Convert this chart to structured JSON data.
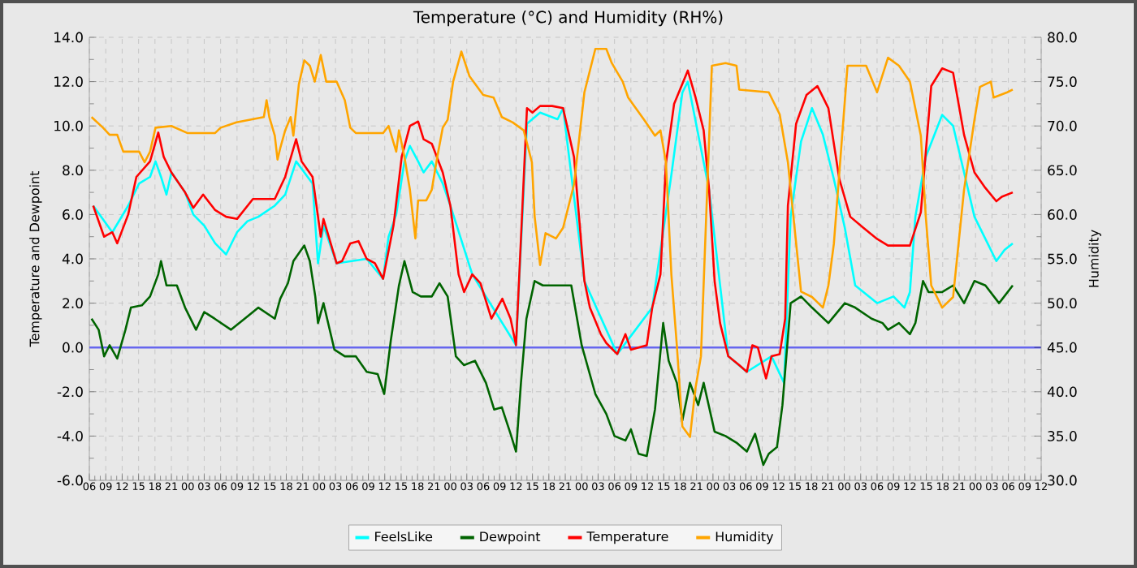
{
  "chart_data": {
    "type": "line",
    "title": "Temperature (°C) and Humidity (RH%)",
    "ylabel": "Temperature and Dewpoint",
    "y2label": "Humidity",
    "xlim": [
      6,
      180
    ],
    "xticks": [
      {
        "value": 6,
        "label": "06"
      },
      {
        "value": 9,
        "label": "09"
      },
      {
        "value": 12,
        "label": "12"
      },
      {
        "value": 15,
        "label": "15"
      },
      {
        "value": 18,
        "label": "18"
      },
      {
        "value": 21,
        "label": "21"
      },
      {
        "value": 24,
        "label": "00"
      },
      {
        "value": 27,
        "label": "03"
      },
      {
        "value": 30,
        "label": "06"
      },
      {
        "value": 33,
        "label": "09"
      },
      {
        "value": 36,
        "label": "12"
      },
      {
        "value": 39,
        "label": "15"
      },
      {
        "value": 42,
        "label": "18"
      },
      {
        "value": 45,
        "label": "21"
      },
      {
        "value": 48,
        "label": "00"
      },
      {
        "value": 51,
        "label": "03"
      },
      {
        "value": 54,
        "label": "06"
      },
      {
        "value": 57,
        "label": "09"
      },
      {
        "value": 60,
        "label": "12"
      },
      {
        "value": 63,
        "label": "15"
      },
      {
        "value": 66,
        "label": "18"
      },
      {
        "value": 69,
        "label": "21"
      },
      {
        "value": 72,
        "label": "00"
      },
      {
        "value": 75,
        "label": "03"
      },
      {
        "value": 78,
        "label": "06"
      },
      {
        "value": 81,
        "label": "09"
      },
      {
        "value": 84,
        "label": "12"
      },
      {
        "value": 87,
        "label": "15"
      },
      {
        "value": 90,
        "label": "18"
      },
      {
        "value": 93,
        "label": "21"
      },
      {
        "value": 96,
        "label": "00"
      },
      {
        "value": 99,
        "label": "03"
      },
      {
        "value": 102,
        "label": "06"
      },
      {
        "value": 105,
        "label": "09"
      },
      {
        "value": 108,
        "label": "12"
      },
      {
        "value": 111,
        "label": "15"
      },
      {
        "value": 114,
        "label": "18"
      },
      {
        "value": 117,
        "label": "21"
      },
      {
        "value": 120,
        "label": "00"
      },
      {
        "value": 123,
        "label": "03"
      },
      {
        "value": 126,
        "label": "06"
      },
      {
        "value": 129,
        "label": "09"
      },
      {
        "value": 132,
        "label": "12"
      },
      {
        "value": 135,
        "label": "15"
      },
      {
        "value": 138,
        "label": "18"
      },
      {
        "value": 141,
        "label": "21"
      },
      {
        "value": 144,
        "label": "00"
      },
      {
        "value": 147,
        "label": "03"
      },
      {
        "value": 150,
        "label": "06"
      },
      {
        "value": 153,
        "label": "09"
      },
      {
        "value": 156,
        "label": "12"
      },
      {
        "value": 159,
        "label": "15"
      },
      {
        "value": 162,
        "label": "18"
      },
      {
        "value": 165,
        "label": "21"
      },
      {
        "value": 168,
        "label": "00"
      },
      {
        "value": 171,
        "label": "03"
      },
      {
        "value": 174,
        "label": "06"
      },
      {
        "value": 177,
        "label": "09"
      },
      {
        "value": 180,
        "label": "12"
      }
    ],
    "ylim": [
      -6,
      14
    ],
    "yticks": [
      {
        "value": -6,
        "label": "-6.0"
      },
      {
        "value": -4,
        "label": "-4.0"
      },
      {
        "value": -2,
        "label": "-2.0"
      },
      {
        "value": 0,
        "label": "0.0"
      },
      {
        "value": 2,
        "label": "2.0"
      },
      {
        "value": 4,
        "label": "4.0"
      },
      {
        "value": 6,
        "label": "6.0"
      },
      {
        "value": 8,
        "label": "8.0"
      },
      {
        "value": 10,
        "label": "10.0"
      },
      {
        "value": 12,
        "label": "12.0"
      },
      {
        "value": 14,
        "label": "14.0"
      }
    ],
    "y2lim": [
      30,
      80
    ],
    "y2ticks": [
      {
        "value": 30,
        "label": "30.0"
      },
      {
        "value": 35,
        "label": "35.0"
      },
      {
        "value": 40,
        "label": "40.0"
      },
      {
        "value": 45,
        "label": "45.0"
      },
      {
        "value": 50,
        "label": "50.0"
      },
      {
        "value": 55,
        "label": "55.0"
      },
      {
        "value": 60,
        "label": "60.0"
      },
      {
        "value": 65,
        "label": "65.0"
      },
      {
        "value": 70,
        "label": "70.0"
      },
      {
        "value": 75,
        "label": "75.0"
      },
      {
        "value": 80,
        "label": "80.0"
      }
    ],
    "grid": true,
    "legend": "bottom",
    "marker": "none",
    "ref_lines": [
      {
        "axis": "y",
        "value": 0,
        "color": "#6666ee"
      }
    ],
    "series": [
      {
        "name": "FeelsLike",
        "color": "#00ffff",
        "x": [
          6.7,
          10.2,
          13.1,
          15.1,
          17.1,
          18.1,
          19.1,
          20.1,
          21,
          23.5,
          25,
          27,
          29,
          31,
          33,
          34.9,
          36.9,
          39.9,
          41.8,
          43.8,
          45.3,
          46.8,
          47.8,
          48.8,
          51.2,
          56.7,
          59.7,
          60.7,
          62.1,
          63.6,
          64.6,
          66.1,
          67.1,
          68.6,
          70.6,
          72,
          76,
          84,
          86,
          88.4,
          91.6,
          92.6,
          96.5,
          102.5,
          108.9,
          112.4,
          114.4,
          115.4,
          119.3,
          122.8,
          126.2,
          130.7,
          133,
          134.2,
          136.1,
          138.1,
          140.1,
          142.1,
          144.1,
          146,
          150,
          153,
          155,
          156,
          157,
          158.9,
          161.9,
          163.9,
          165.9,
          167.8,
          169.8,
          171.8,
          173.3,
          174.8
        ],
        "values": [
          6.4,
          5.2,
          6.4,
          7.4,
          7.7,
          8.4,
          7.7,
          6.9,
          7.9,
          7.0,
          6.0,
          5.5,
          4.7,
          4.2,
          5.2,
          5.7,
          5.9,
          6.4,
          6.9,
          8.4,
          7.9,
          7.4,
          3.8,
          5.5,
          3.8,
          4.0,
          3.1,
          5.0,
          6.0,
          8.4,
          9.1,
          8.4,
          7.9,
          8.4,
          7.4,
          6.4,
          3.3,
          0.1,
          10.1,
          10.6,
          10.3,
          10.8,
          3.0,
          -0.3,
          1.8,
          7.8,
          11.5,
          12.0,
          7.1,
          -0.4,
          -1.1,
          -0.4,
          -1.6,
          5.9,
          9.3,
          10.8,
          9.6,
          7.6,
          5.4,
          2.8,
          2.0,
          2.3,
          1.8,
          2.5,
          5.9,
          8.6,
          10.5,
          10.0,
          7.9,
          5.9,
          4.9,
          3.9,
          4.4,
          4.7
        ]
      },
      {
        "name": "Dewpoint",
        "color": "#006400",
        "x": [
          6.4,
          7.7,
          8.7,
          9.7,
          11.1,
          12.6,
          13.6,
          15.6,
          17.1,
          18.6,
          19.1,
          20.1,
          22,
          23.5,
          25.5,
          27,
          28.9,
          31.9,
          34.9,
          36.9,
          39.9,
          40.9,
          42.3,
          43.3,
          45.3,
          46.3,
          47.3,
          47.8,
          48.8,
          50.8,
          52.7,
          54.7,
          56.7,
          58.7,
          59.9,
          61.1,
          62.6,
          63.6,
          65.1,
          66.6,
          68.6,
          70,
          71.5,
          73,
          74.5,
          76.5,
          78.5,
          80,
          81.4,
          83,
          84,
          84.9,
          85.9,
          87.4,
          88.9,
          90.6,
          94.1,
          96,
          98.5,
          100.5,
          102,
          104,
          105,
          106.4,
          107.9,
          109.4,
          110.9,
          111.9,
          113.4,
          114.4,
          115.8,
          117.3,
          118.3,
          120.3,
          122.3,
          124.3,
          126.2,
          127.7,
          129.2,
          130.2,
          131.7,
          132.7,
          134.2,
          136.1,
          138.1,
          141.1,
          144.1,
          146,
          149,
          151,
          152,
          154,
          156,
          157,
          158.4,
          159.4,
          161.9,
          163.9,
          165.9,
          167.8,
          169.8,
          172.3,
          174.8
        ],
        "values": [
          1.3,
          0.8,
          -0.4,
          0.1,
          -0.5,
          0.8,
          1.8,
          1.9,
          2.3,
          3.3,
          3.9,
          2.8,
          2.8,
          1.8,
          0.8,
          1.6,
          1.3,
          0.8,
          1.4,
          1.8,
          1.3,
          2.2,
          2.9,
          3.9,
          4.6,
          3.9,
          2.3,
          1.1,
          2.0,
          -0.1,
          -0.4,
          -0.4,
          -1.1,
          -1.2,
          -2.1,
          0.3,
          2.8,
          3.9,
          2.5,
          2.3,
          2.3,
          2.9,
          2.3,
          -0.4,
          -0.8,
          -0.6,
          -1.6,
          -2.8,
          -2.7,
          -3.9,
          -4.7,
          -1.6,
          1.3,
          3.0,
          2.8,
          2.8,
          2.8,
          0.1,
          -2.1,
          -3.0,
          -4.0,
          -4.2,
          -3.7,
          -4.8,
          -4.9,
          -2.8,
          1.1,
          -0.6,
          -1.6,
          -3.3,
          -1.6,
          -2.6,
          -1.6,
          -3.8,
          -4.0,
          -4.3,
          -4.7,
          -3.9,
          -5.3,
          -4.8,
          -4.5,
          -2.6,
          2.0,
          2.3,
          1.8,
          1.1,
          2.0,
          1.8,
          1.3,
          1.1,
          0.8,
          1.1,
          0.6,
          1.1,
          3.0,
          2.5,
          2.5,
          2.8,
          2.0,
          3.0,
          2.8,
          2.0,
          2.8
        ]
      },
      {
        "name": "Temperature",
        "color": "#ff0000",
        "x": [
          6.7,
          8.7,
          10.2,
          11.1,
          13.1,
          14.6,
          17.1,
          18.6,
          19.6,
          21,
          23.5,
          25,
          26.8,
          29,
          31,
          33,
          35.9,
          39.9,
          41.8,
          43.8,
          44.8,
          46.8,
          48.3,
          48.8,
          51.2,
          52.2,
          53.7,
          55.2,
          56.7,
          58.2,
          59.7,
          61.6,
          63.1,
          64.6,
          66.1,
          67.1,
          68.6,
          70.6,
          72,
          73.5,
          74.5,
          76,
          77.5,
          79.5,
          81.5,
          83,
          84,
          86,
          87,
          88.4,
          90.6,
          92.6,
          94.6,
          96.5,
          97.5,
          99.5,
          100.5,
          102.5,
          104,
          105,
          106.4,
          107.9,
          108.9,
          110.4,
          111.4,
          112.9,
          115.4,
          116.8,
          118.3,
          119.3,
          120.3,
          121.3,
          122.8,
          124.8,
          126.2,
          127.2,
          128.2,
          129.7,
          130.7,
          132.2,
          133.2,
          133.7,
          135.2,
          137.1,
          139.1,
          141.1,
          143.1,
          145.1,
          147.5,
          150,
          152,
          156,
          158,
          159.9,
          161.9,
          163.9,
          165.9,
          167.8,
          169.8,
          171.8,
          172.8,
          174.8
        ],
        "values": [
          6.4,
          5.0,
          5.2,
          4.7,
          6.0,
          7.7,
          8.4,
          9.7,
          8.6,
          7.9,
          7.0,
          6.3,
          6.9,
          6.2,
          5.9,
          5.8,
          6.7,
          6.7,
          7.7,
          9.4,
          8.4,
          7.7,
          5.0,
          5.8,
          3.8,
          3.9,
          4.7,
          4.8,
          4.0,
          3.8,
          3.1,
          5.5,
          8.6,
          10.0,
          10.2,
          9.4,
          9.2,
          7.9,
          6.4,
          3.3,
          2.5,
          3.3,
          2.9,
          1.3,
          2.2,
          1.3,
          0.1,
          10.8,
          10.6,
          10.9,
          10.9,
          10.8,
          8.6,
          3.0,
          1.8,
          0.6,
          0.2,
          -0.3,
          0.6,
          -0.1,
          0,
          0.1,
          1.8,
          3.3,
          8.3,
          11.0,
          12.5,
          11.3,
          9.8,
          7.1,
          3.0,
          1.1,
          -0.4,
          -0.8,
          -1.1,
          0.1,
          0,
          -1.4,
          -0.4,
          -0.3,
          1.3,
          6.4,
          10.1,
          11.4,
          11.8,
          10.8,
          7.6,
          5.9,
          5.4,
          4.9,
          4.6,
          4.6,
          6.1,
          11.8,
          12.6,
          12.4,
          9.6,
          7.9,
          7.2,
          6.6,
          6.8,
          7.0
        ]
      },
      {
        "name": "Humidity",
        "color": "#ffa500",
        "axis": "y2",
        "x": [
          6.4,
          8.5,
          9.7,
          11.1,
          12.2,
          15.1,
          16.1,
          17.1,
          18.1,
          21,
          23.9,
          29,
          30,
          32.9,
          37.9,
          38.4,
          38.9,
          39.9,
          40.4,
          40.9,
          41.8,
          42.8,
          43.3,
          44.3,
          45.3,
          46.3,
          47.2,
          48.3,
          49.3,
          51.2,
          52.7,
          53.7,
          54.7,
          59.7,
          60.7,
          62.1,
          62.6,
          63.6,
          64.6,
          65.6,
          66.1,
          67.6,
          68.6,
          69.6,
          70.6,
          71.5,
          72.5,
          74,
          75.5,
          78,
          79.9,
          81.4,
          83.4,
          85.4,
          86.9,
          87.4,
          88.4,
          89.4,
          91.3,
          92.6,
          94.6,
          96.5,
          98.5,
          100.5,
          101.5,
          103.5,
          104.5,
          107.4,
          109.4,
          110.4,
          111.4,
          112.4,
          113.4,
          114.4,
          115.8,
          116.8,
          117.8,
          119.8,
          122.3,
          124.3,
          124.8,
          130.2,
          132.2,
          133.7,
          136.1,
          138.1,
          140.1,
          141.1,
          142.1,
          144.6,
          148,
          150,
          152,
          154,
          156,
          158,
          158.9,
          159.9,
          161.9,
          163.9,
          165.9,
          167.8,
          168.8,
          170.8,
          171.3,
          173.8,
          174.8
        ],
        "values": [
          71.0,
          69.8,
          69.0,
          69.0,
          67.1,
          67.1,
          65.9,
          67.1,
          69.8,
          70.0,
          69.2,
          69.2,
          69.8,
          70.4,
          71.0,
          72.9,
          71.0,
          68.9,
          66.2,
          67.5,
          69.5,
          71.0,
          68.9,
          74.7,
          77.4,
          76.8,
          75.0,
          78.0,
          75.0,
          75.0,
          72.9,
          69.8,
          69.2,
          69.2,
          70.0,
          67.1,
          69.5,
          66.5,
          62.8,
          57.3,
          61.6,
          61.6,
          62.8,
          66.5,
          69.8,
          70.7,
          75.0,
          78.4,
          75.6,
          73.5,
          73.2,
          71.0,
          70.4,
          69.5,
          65.9,
          59.8,
          54.3,
          57.9,
          57.3,
          58.5,
          63.4,
          73.8,
          78.7,
          78.7,
          77.1,
          75.0,
          73.2,
          70.7,
          68.9,
          69.5,
          65.9,
          53.2,
          45.2,
          36.1,
          34.9,
          40.4,
          44.0,
          76.8,
          77.1,
          76.8,
          74.1,
          73.8,
          71.3,
          65.9,
          51.3,
          50.7,
          49.5,
          52.0,
          56.7,
          76.8,
          76.8,
          73.8,
          77.7,
          76.8,
          75.0,
          68.9,
          59.8,
          52.0,
          49.5,
          50.7,
          62.8,
          70.7,
          74.4,
          75.0,
          73.2,
          73.8,
          74.1
        ]
      }
    ]
  }
}
